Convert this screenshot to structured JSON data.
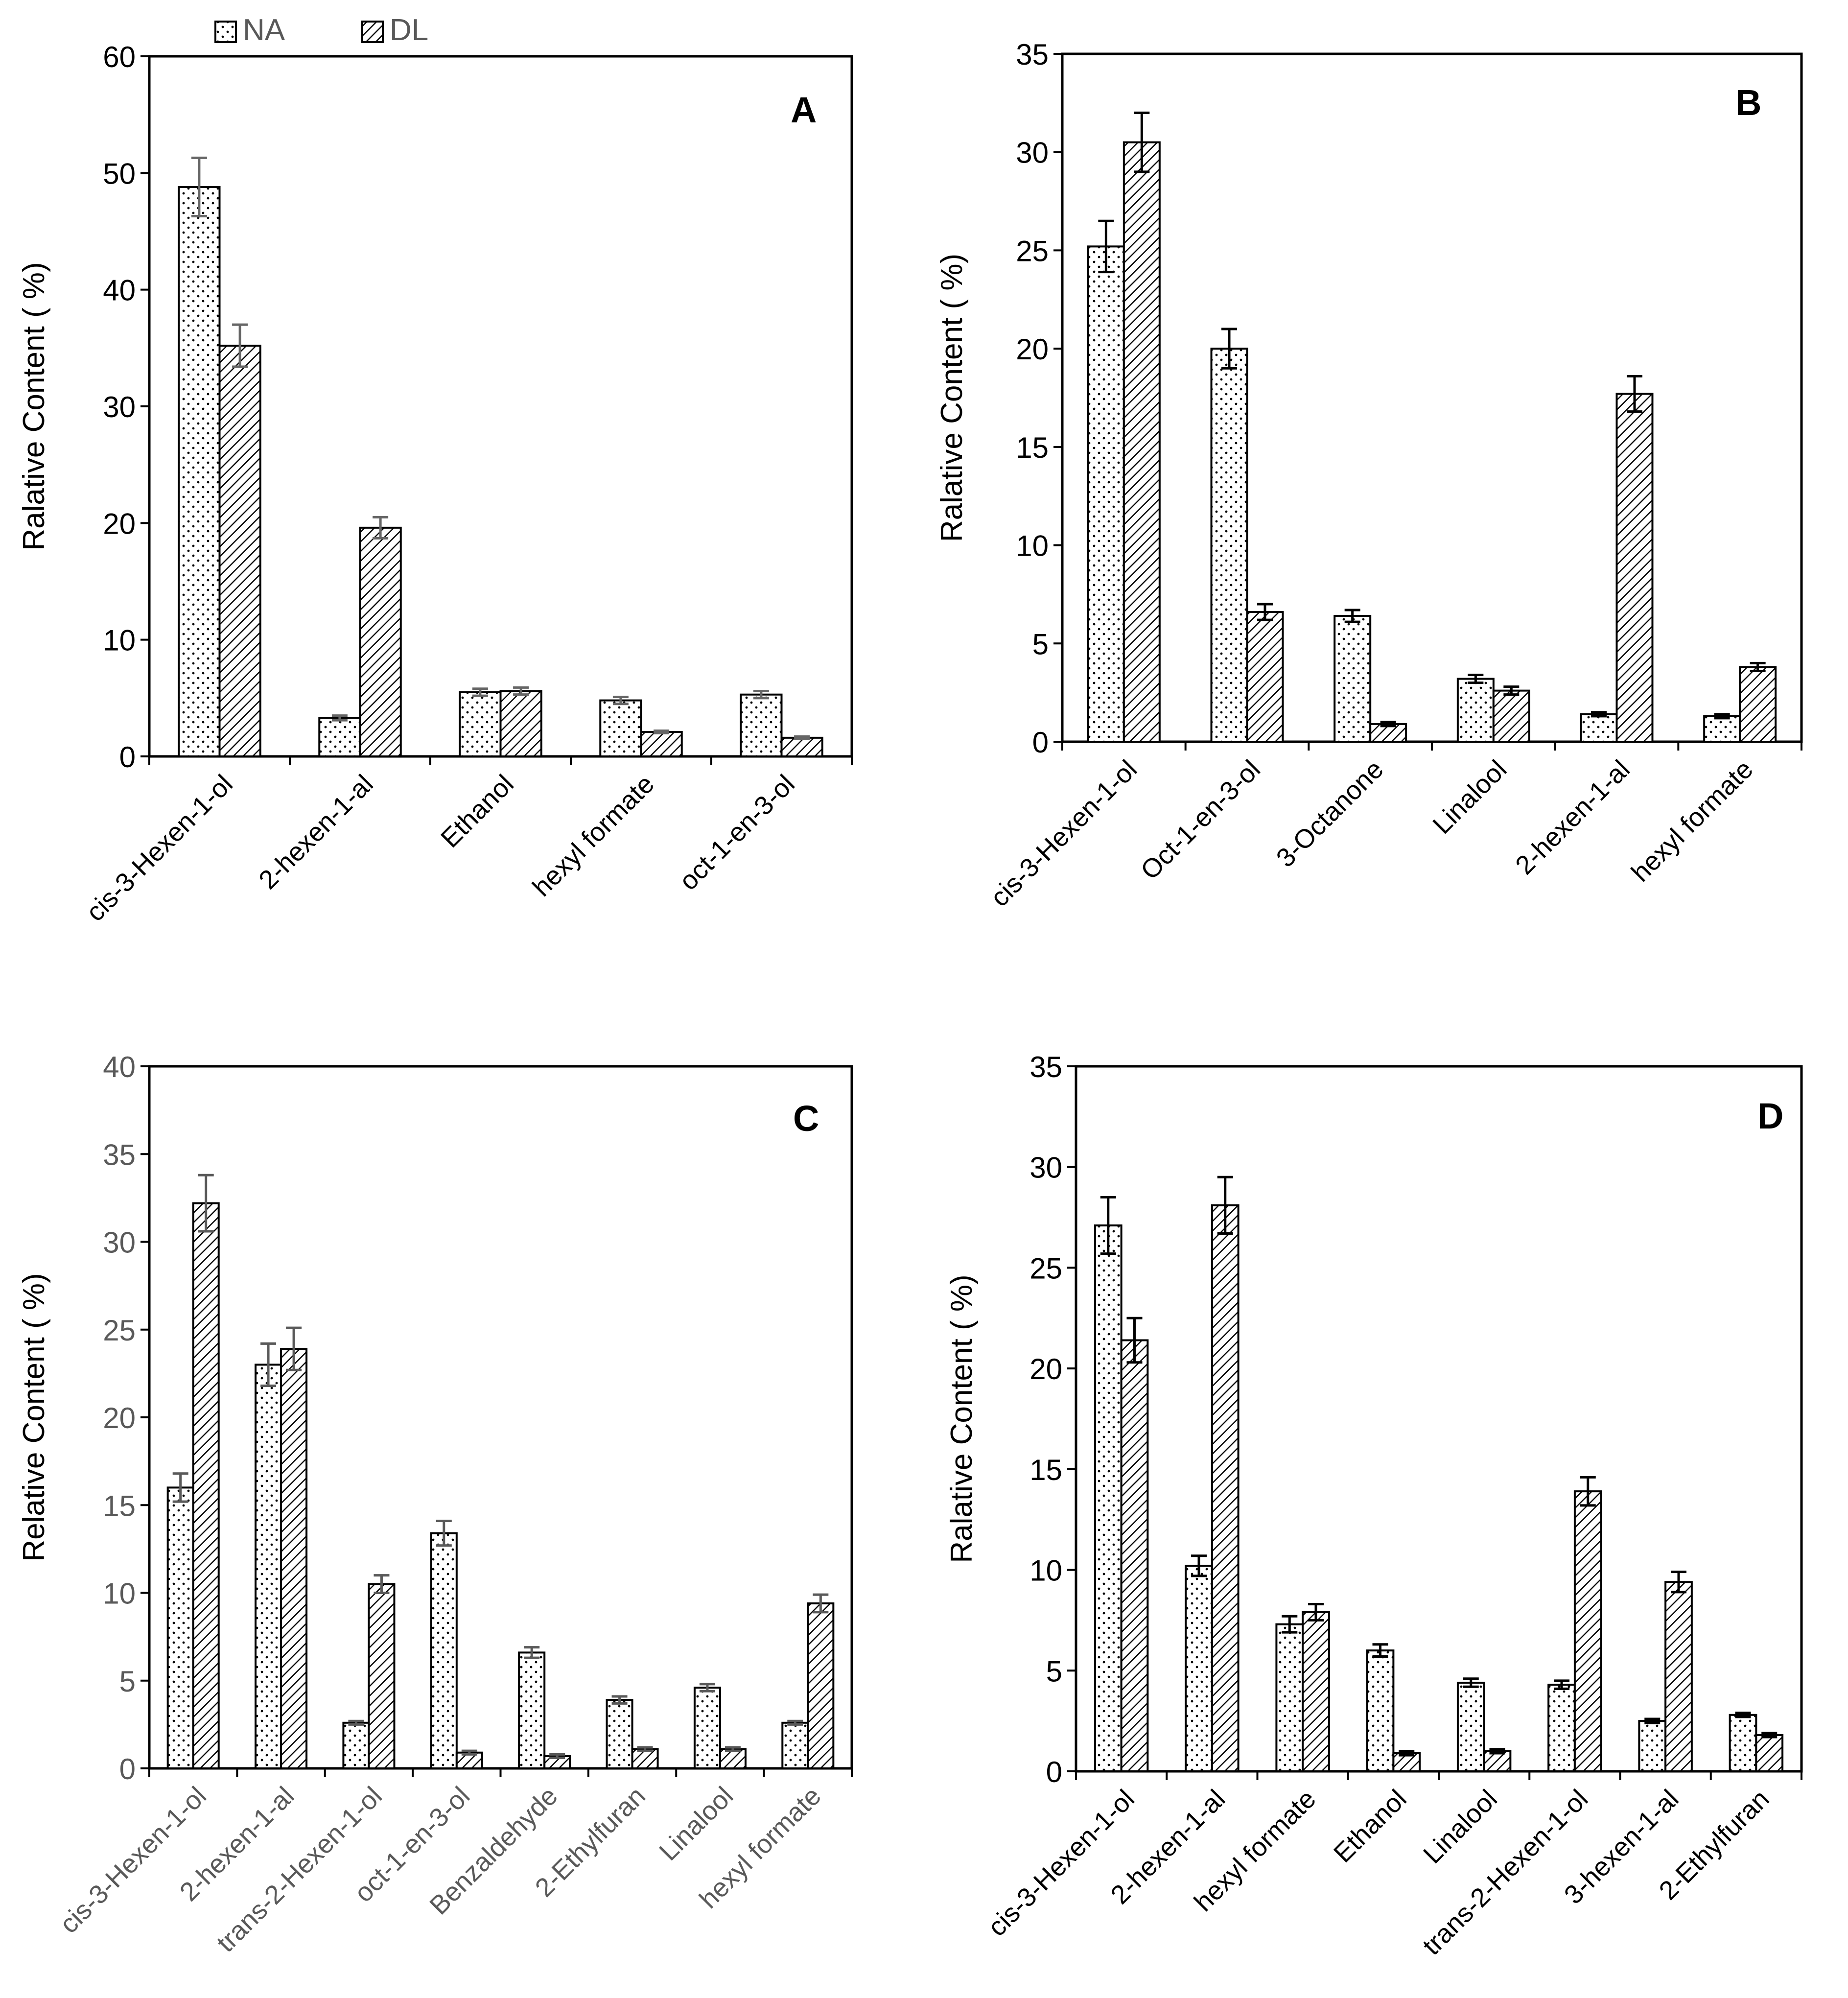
{
  "legend": {
    "position": "top-left",
    "items": [
      {
        "label": "NA",
        "pattern": "dots"
      },
      {
        "label": "DL",
        "pattern": "hatch"
      }
    ]
  },
  "chart_data": [
    {
      "panel": "A",
      "type": "bar",
      "title": "",
      "panel_label": "A",
      "ylabel": "Ralative Content ( %)",
      "xlabel": "",
      "ylim": [
        0,
        60
      ],
      "yticks": [
        0,
        10,
        20,
        30,
        40,
        50,
        60
      ],
      "tick_color": "#000000",
      "error_color": "#666666",
      "categories": [
        "cis-3-Hexen-1-ol",
        "2-hexen-1-al",
        "Ethanol",
        "hexyl formate",
        "oct-1-en-3-ol"
      ],
      "series": [
        {
          "name": "NA",
          "values": [
            48.8,
            3.3,
            5.5,
            4.8,
            5.3
          ],
          "errors": [
            2.5,
            0.2,
            0.3,
            0.3,
            0.3
          ]
        },
        {
          "name": "DL",
          "values": [
            35.2,
            19.6,
            5.6,
            2.1,
            1.6
          ],
          "errors": [
            1.8,
            0.9,
            0.3,
            0.1,
            0.1
          ]
        }
      ]
    },
    {
      "panel": "B",
      "type": "bar",
      "title": "",
      "panel_label": "B",
      "ylabel": "Ralative Content ( %)",
      "xlabel": "",
      "ylim": [
        0,
        35
      ],
      "yticks": [
        0,
        5,
        10,
        15,
        20,
        25,
        30,
        35
      ],
      "tick_color": "#000000",
      "error_color": "#000000",
      "categories": [
        "cis-3-Hexen-1-ol",
        "Oct-1-en-3-ol",
        "3-Octanone",
        "Linalool",
        "2-hexen-1-al",
        "hexyl formate"
      ],
      "series": [
        {
          "name": "NA",
          "values": [
            25.2,
            20.0,
            6.4,
            3.2,
            1.4,
            1.3
          ],
          "errors": [
            1.3,
            1.0,
            0.3,
            0.2,
            0.1,
            0.1
          ]
        },
        {
          "name": "DL",
          "values": [
            30.5,
            6.6,
            0.9,
            2.6,
            17.7,
            3.8
          ],
          "errors": [
            1.5,
            0.4,
            0.1,
            0.2,
            0.9,
            0.2
          ]
        }
      ]
    },
    {
      "panel": "C",
      "type": "bar",
      "title": "",
      "panel_label": "C",
      "ylabel": "Relative Content ( %)",
      "xlabel": "",
      "ylim": [
        0,
        40
      ],
      "yticks": [
        0,
        5,
        10,
        15,
        20,
        25,
        30,
        35,
        40
      ],
      "tick_color": "#595959",
      "error_color": "#595959",
      "categories": [
        "cis-3-Hexen-1-ol",
        "2-hexen-1-al",
        "trans-2-Hexen-1-ol",
        "oct-1-en-3-ol",
        "Benzaldehyde",
        "2-Ethylfuran",
        "Linalool",
        "hexyl formate"
      ],
      "series": [
        {
          "name": "NA",
          "values": [
            16.0,
            23.0,
            2.6,
            13.4,
            6.6,
            3.9,
            4.6,
            2.6
          ],
          "errors": [
            0.8,
            1.2,
            0.1,
            0.7,
            0.3,
            0.2,
            0.2,
            0.1
          ]
        },
        {
          "name": "DL",
          "values": [
            32.2,
            23.9,
            10.5,
            0.9,
            0.7,
            1.1,
            1.1,
            9.4
          ],
          "errors": [
            1.6,
            1.2,
            0.5,
            0.1,
            0.1,
            0.1,
            0.1,
            0.5
          ]
        }
      ]
    },
    {
      "panel": "D",
      "type": "bar",
      "title": "",
      "panel_label": "D",
      "ylabel": "Ralative Content ( %)",
      "xlabel": "",
      "ylim": [
        0,
        35
      ],
      "yticks": [
        0,
        5,
        10,
        15,
        20,
        25,
        30,
        35
      ],
      "tick_color": "#000000",
      "error_color": "#000000",
      "categories": [
        "cis-3-Hexen-1-ol",
        "2-hexen-1-al",
        "hexyl formate",
        "Ethanol",
        "Linalool",
        "trans-2-Hexen-1-ol",
        "3-hexen-1-al",
        "2-Ethylfuran"
      ],
      "series": [
        {
          "name": "NA",
          "values": [
            27.1,
            10.2,
            7.3,
            6.0,
            4.4,
            4.3,
            2.5,
            2.8
          ],
          "errors": [
            1.4,
            0.5,
            0.4,
            0.3,
            0.2,
            0.2,
            0.1,
            0.1
          ]
        },
        {
          "name": "DL",
          "values": [
            21.4,
            28.1,
            7.9,
            0.9,
            1.0,
            13.9,
            9.4,
            1.8
          ],
          "errors": [
            1.1,
            1.4,
            0.4,
            0.1,
            0.1,
            0.7,
            0.5,
            0.1
          ]
        }
      ]
    }
  ]
}
